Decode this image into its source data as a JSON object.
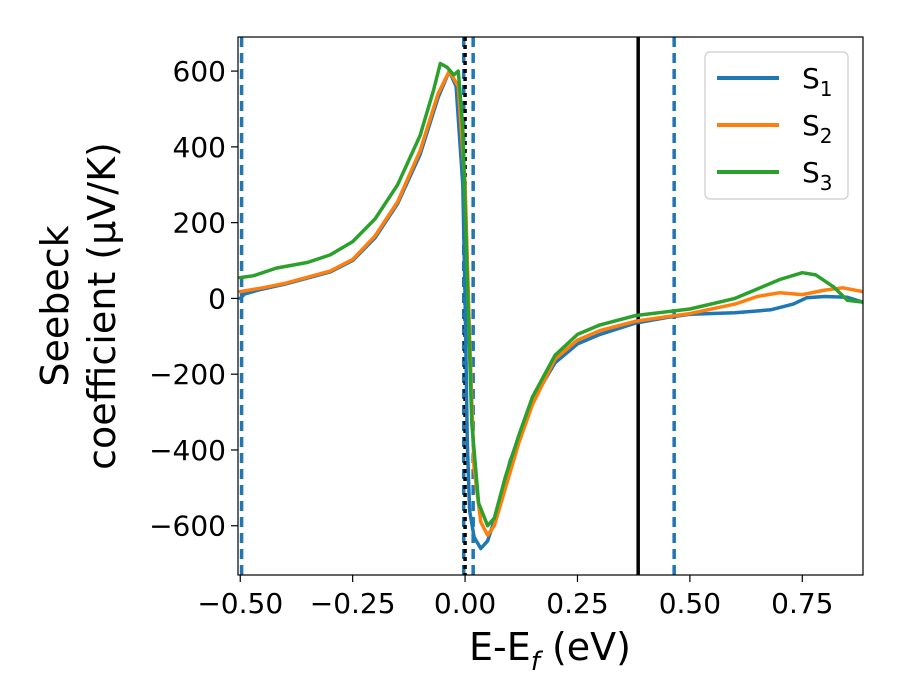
{
  "chart_data": {
    "type": "line",
    "title": "",
    "xlabel": {
      "main": "E-E",
      "sub": "f",
      "rest": " (eV)"
    },
    "ylabel": {
      "line1": "Seebeck",
      "line2": "coefficient  (μV/K)"
    },
    "xlim": [
      -0.505,
      0.885
    ],
    "ylim": [
      -730,
      690
    ],
    "xticks": [
      -0.5,
      -0.25,
      0.0,
      0.25,
      0.5,
      0.75
    ],
    "xtick_labels": [
      "−0.50",
      "−0.25",
      "0.00",
      "0.25",
      "0.50",
      "0.75"
    ],
    "yticks": [
      -600,
      -400,
      -200,
      0,
      200,
      400,
      600
    ],
    "ytick_labels": [
      "−600",
      "−400",
      "−200",
      "0",
      "200",
      "400",
      "600"
    ],
    "grid": false,
    "legend_position": "top-right",
    "series": [
      {
        "name": "S",
        "sub": "1",
        "color": "#1f77b4",
        "points": [
          [
            -0.5,
            0
          ],
          [
            -0.49,
            12
          ],
          [
            -0.46,
            22
          ],
          [
            -0.4,
            38
          ],
          [
            -0.3,
            70
          ],
          [
            -0.25,
            100
          ],
          [
            -0.2,
            160
          ],
          [
            -0.15,
            250
          ],
          [
            -0.1,
            380
          ],
          [
            -0.06,
            530
          ],
          [
            -0.035,
            600
          ],
          [
            -0.02,
            560
          ],
          [
            -0.005,
            300
          ],
          [
            0.0,
            0
          ],
          [
            0.005,
            -380
          ],
          [
            0.01,
            -560
          ],
          [
            0.02,
            -630
          ],
          [
            0.035,
            -660
          ],
          [
            0.05,
            -640
          ],
          [
            0.075,
            -550
          ],
          [
            0.1,
            -430
          ],
          [
            0.15,
            -270
          ],
          [
            0.2,
            -170
          ],
          [
            0.25,
            -120
          ],
          [
            0.3,
            -95
          ],
          [
            0.38,
            -65
          ],
          [
            0.45,
            -50
          ],
          [
            0.5,
            -42
          ],
          [
            0.6,
            -38
          ],
          [
            0.68,
            -30
          ],
          [
            0.73,
            -15
          ],
          [
            0.76,
            2
          ],
          [
            0.8,
            5
          ],
          [
            0.85,
            3
          ],
          [
            0.885,
            -10
          ]
        ]
      },
      {
        "name": "S",
        "sub": "2",
        "color": "#ff7f0e",
        "points": [
          [
            -0.5,
            18
          ],
          [
            -0.45,
            28
          ],
          [
            -0.4,
            40
          ],
          [
            -0.3,
            72
          ],
          [
            -0.25,
            103
          ],
          [
            -0.2,
            165
          ],
          [
            -0.15,
            255
          ],
          [
            -0.1,
            390
          ],
          [
            -0.06,
            540
          ],
          [
            -0.035,
            600
          ],
          [
            -0.015,
            560
          ],
          [
            0.0,
            300
          ],
          [
            0.01,
            -100
          ],
          [
            0.02,
            -450
          ],
          [
            0.035,
            -590
          ],
          [
            0.05,
            -625
          ],
          [
            0.065,
            -600
          ],
          [
            0.09,
            -500
          ],
          [
            0.12,
            -380
          ],
          [
            0.15,
            -280
          ],
          [
            0.2,
            -160
          ],
          [
            0.25,
            -110
          ],
          [
            0.3,
            -85
          ],
          [
            0.38,
            -60
          ],
          [
            0.45,
            -48
          ],
          [
            0.5,
            -40
          ],
          [
            0.6,
            -15
          ],
          [
            0.65,
            5
          ],
          [
            0.7,
            15
          ],
          [
            0.75,
            10
          ],
          [
            0.8,
            22
          ],
          [
            0.84,
            28
          ],
          [
            0.885,
            18
          ]
        ]
      },
      {
        "name": "S",
        "sub": "3",
        "color": "#2ca02c",
        "points": [
          [
            -0.5,
            55
          ],
          [
            -0.47,
            60
          ],
          [
            -0.42,
            80
          ],
          [
            -0.35,
            95
          ],
          [
            -0.3,
            115
          ],
          [
            -0.25,
            150
          ],
          [
            -0.2,
            210
          ],
          [
            -0.15,
            300
          ],
          [
            -0.1,
            430
          ],
          [
            -0.07,
            550
          ],
          [
            -0.055,
            620
          ],
          [
            -0.04,
            610
          ],
          [
            -0.025,
            590
          ],
          [
            -0.015,
            600
          ],
          [
            -0.005,
            450
          ],
          [
            0.005,
            50
          ],
          [
            0.015,
            -330
          ],
          [
            0.03,
            -540
          ],
          [
            0.05,
            -600
          ],
          [
            0.065,
            -580
          ],
          [
            0.09,
            -470
          ],
          [
            0.12,
            -360
          ],
          [
            0.15,
            -260
          ],
          [
            0.2,
            -150
          ],
          [
            0.25,
            -95
          ],
          [
            0.3,
            -70
          ],
          [
            0.38,
            -45
          ],
          [
            0.45,
            -35
          ],
          [
            0.5,
            -28
          ],
          [
            0.6,
            0
          ],
          [
            0.65,
            25
          ],
          [
            0.7,
            50
          ],
          [
            0.75,
            68
          ],
          [
            0.78,
            62
          ],
          [
            0.82,
            30
          ],
          [
            0.85,
            -5
          ],
          [
            0.885,
            -10
          ]
        ]
      }
    ],
    "vertical_lines": [
      {
        "x": -0.497,
        "color": "#1f77b4",
        "style": "dashed"
      },
      {
        "x": -0.003,
        "color": "#1f77b4",
        "style": "dashed"
      },
      {
        "x": 0.018,
        "color": "#1f77b4",
        "style": "dashed"
      },
      {
        "x": 0.465,
        "color": "#1f77b4",
        "style": "dashed"
      },
      {
        "x": 0.0,
        "color": "#000000",
        "style": "dotted"
      },
      {
        "x": 0.385,
        "color": "#000000",
        "style": "solid"
      }
    ]
  }
}
